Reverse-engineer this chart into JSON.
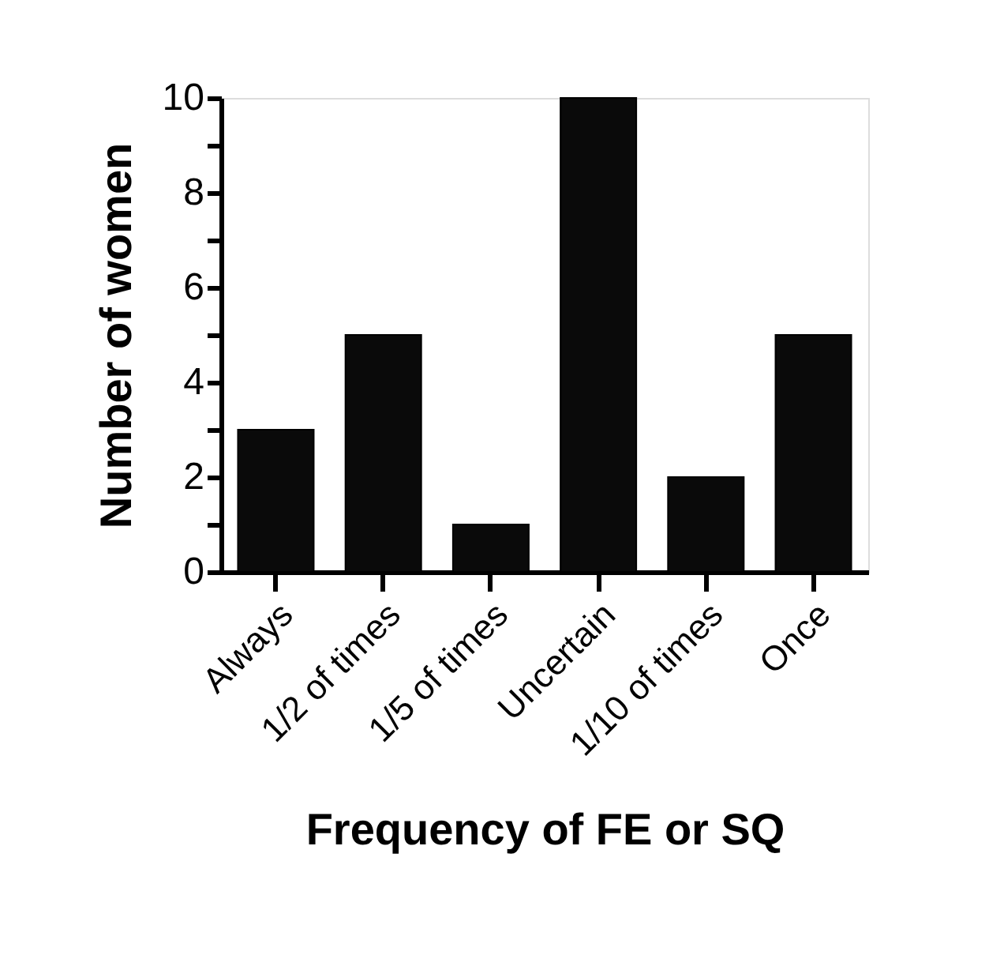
{
  "chart_data": {
    "type": "bar",
    "xlabel": "Frequency of FE or SQ",
    "ylabel": "Number of women",
    "categories": [
      "Always",
      "1/2 of times",
      "1/5 of times",
      "Uncertain",
      "1/10 of times",
      "Once"
    ],
    "values": [
      3,
      5,
      1,
      10,
      2,
      5
    ],
    "color": "#0a0a0a",
    "ylim": [
      0,
      10
    ],
    "yticks": [
      0,
      {
        "value": 1,
        "label": null
      },
      2,
      {
        "value": 3,
        "label": null
      },
      4,
      {
        "value": 5,
        "label": null
      },
      6,
      {
        "value": 7,
        "label": null
      },
      8,
      {
        "value": 9,
        "label": null
      },
      10
    ],
    "grid": false
  }
}
